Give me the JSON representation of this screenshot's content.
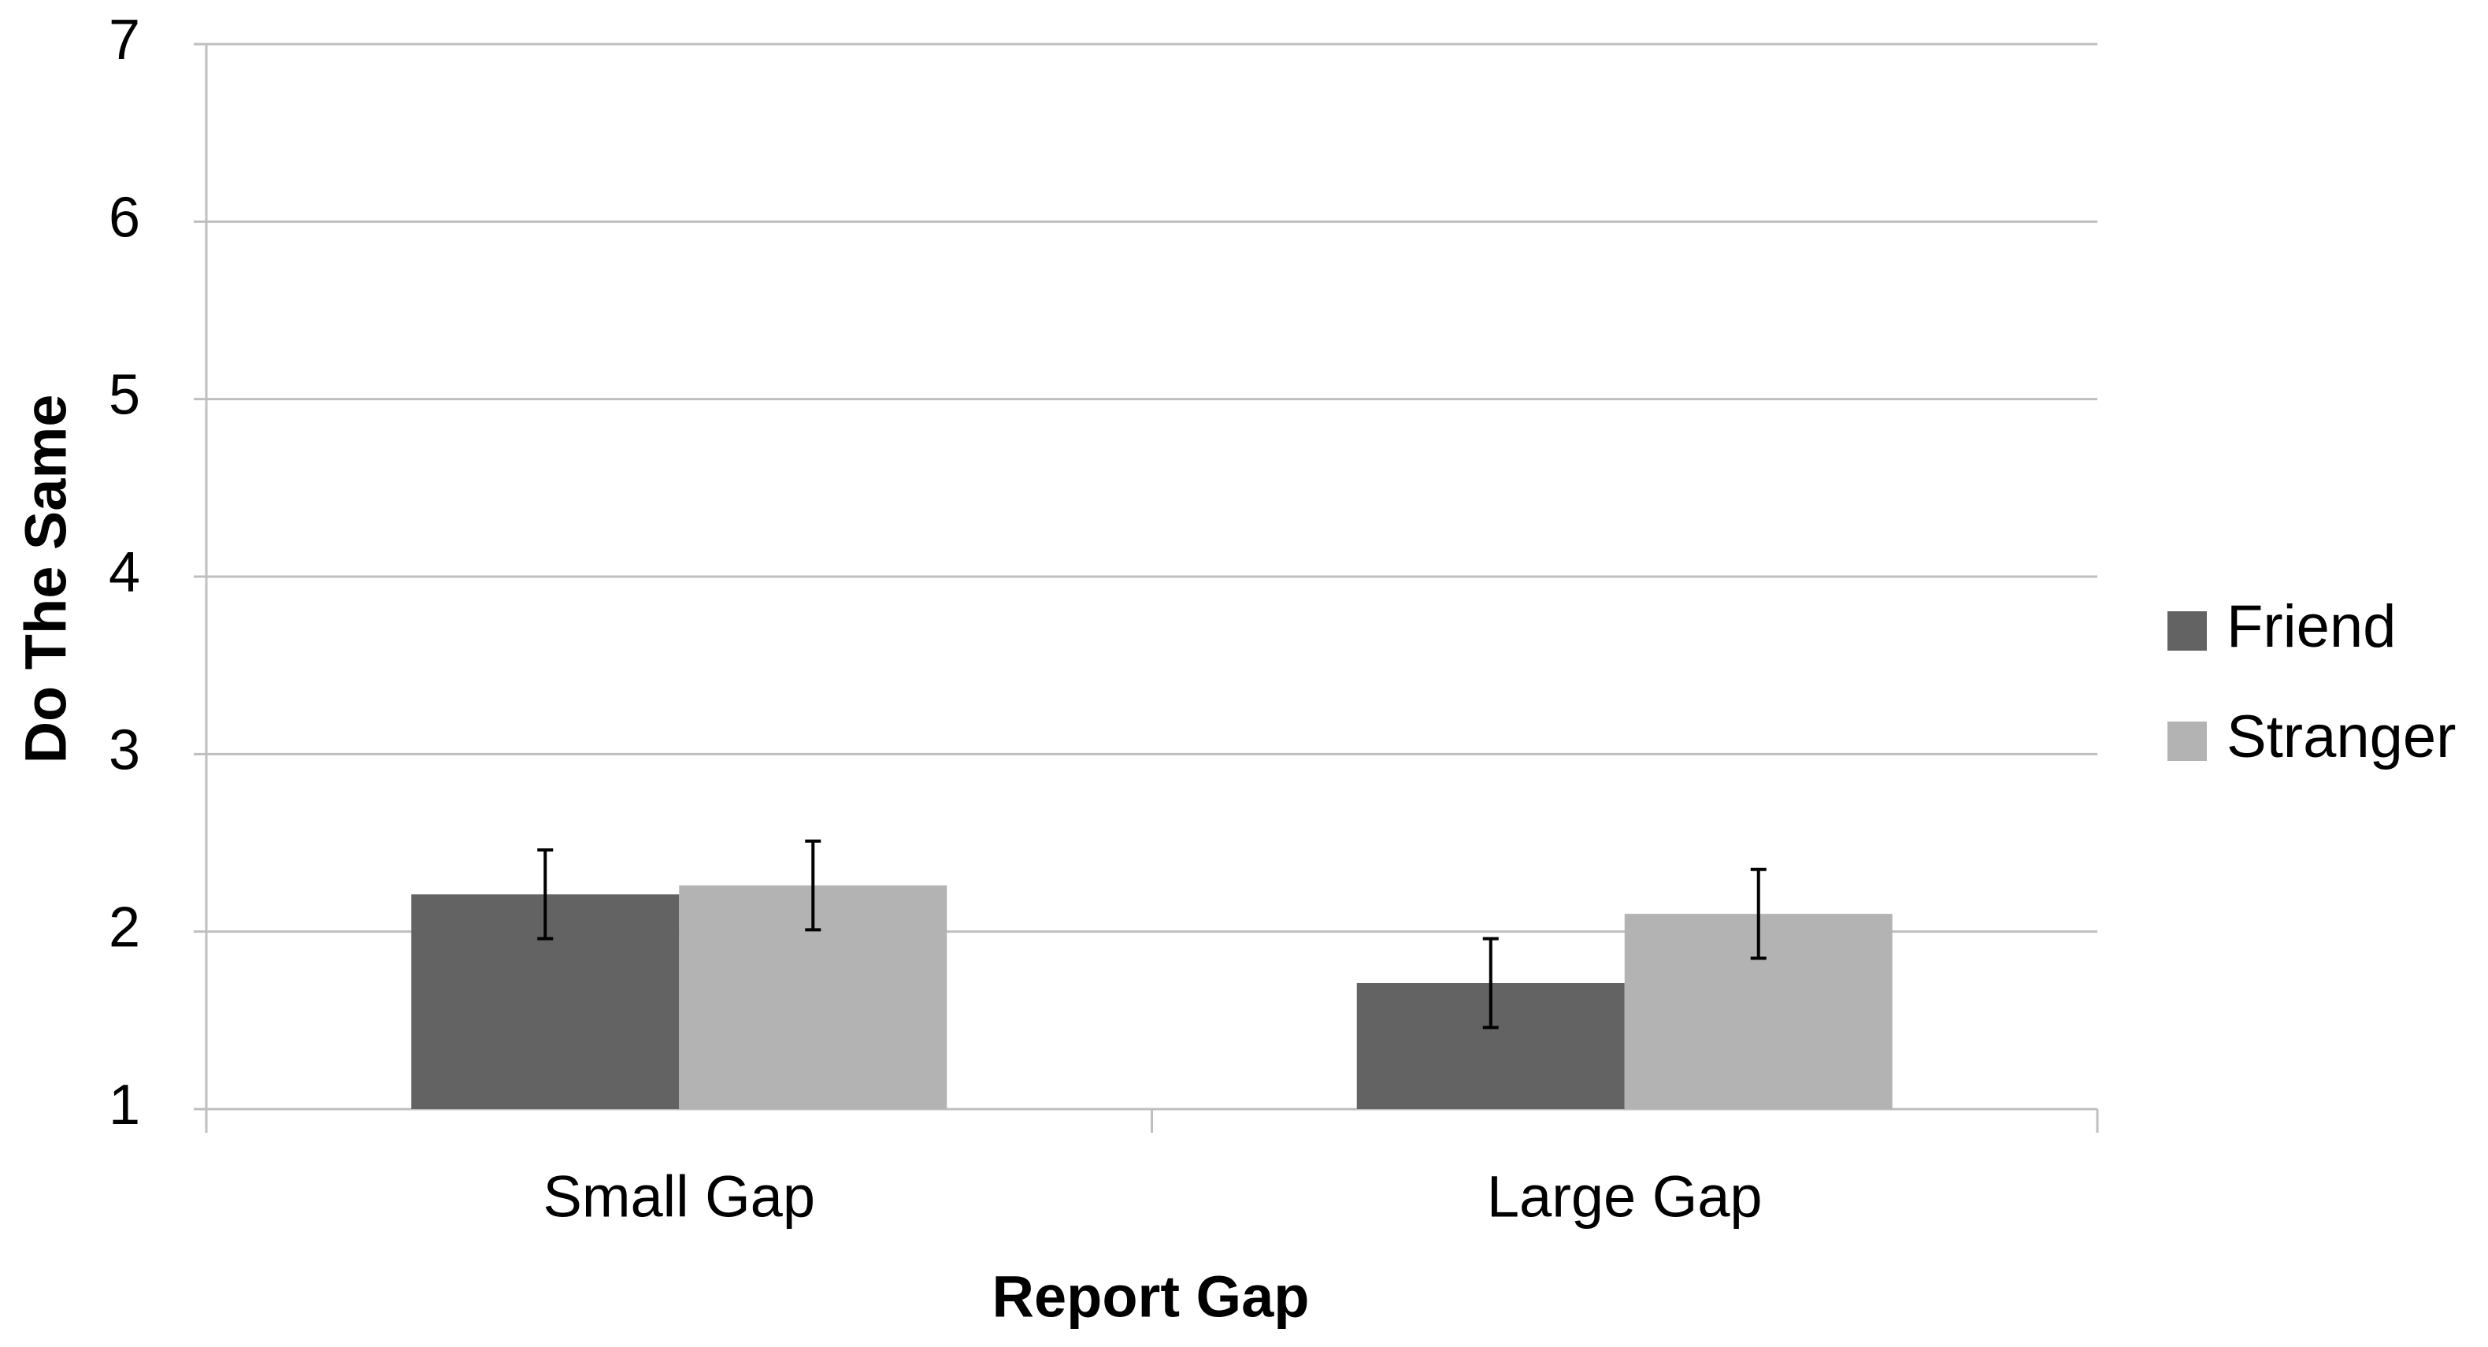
{
  "chart_data": {
    "type": "bar",
    "x_label": "Report Gap",
    "y_label": "Do The Same",
    "categories": [
      "Small Gap",
      "Large Gap"
    ],
    "series": [
      {
        "name": "Friend",
        "color": "#636363",
        "values": [
          2.21,
          1.71
        ],
        "errors": [
          0.25,
          0.25
        ]
      },
      {
        "name": "Stranger",
        "color": "#b3b3b3",
        "values": [
          2.26,
          2.1
        ],
        "errors": [
          0.25,
          0.25
        ]
      }
    ],
    "ylim": [
      1,
      7
    ],
    "yticks": [
      1,
      2,
      3,
      4,
      5,
      6,
      7
    ],
    "grid": true,
    "legend": "right"
  }
}
